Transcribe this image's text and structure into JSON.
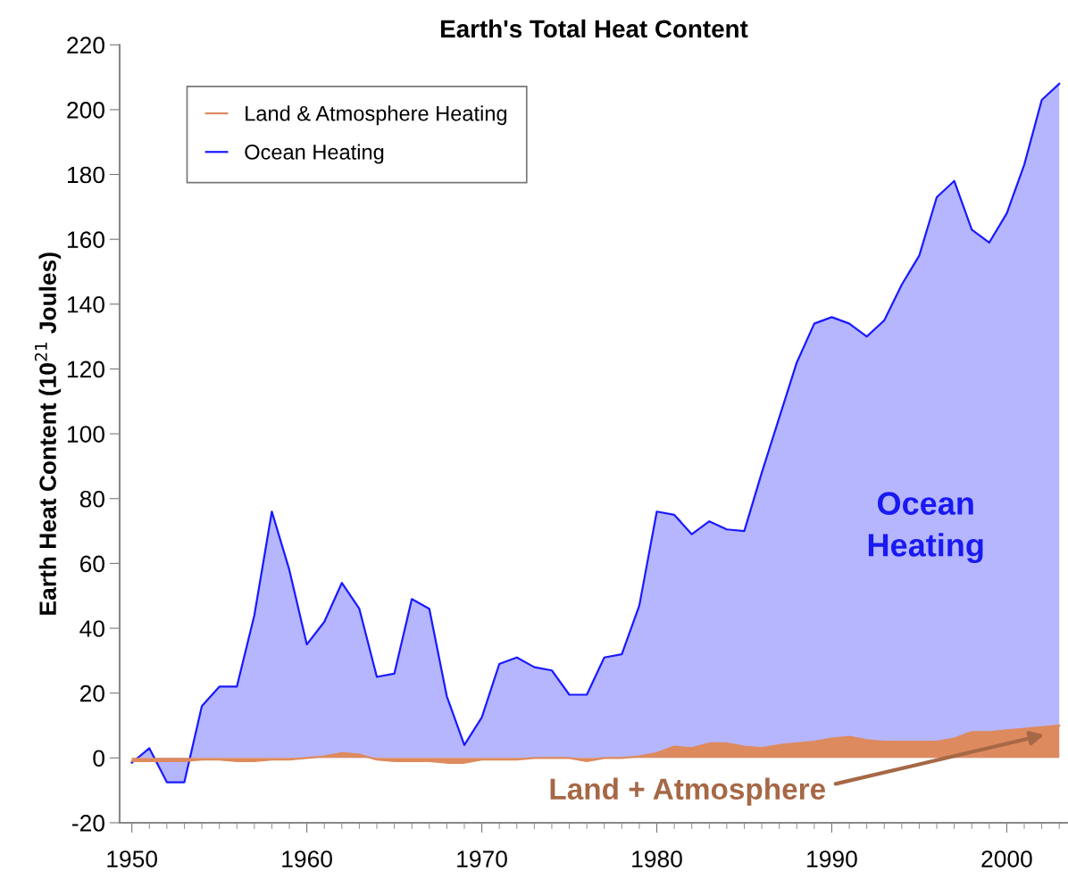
{
  "chart_data": {
    "type": "area",
    "title": "Earth's Total Heat Content",
    "ylabel": "Earth Heat Content (10$^{21}$ Joules)",
    "x": [
      1950,
      1951,
      1952,
      1953,
      1954,
      1955,
      1956,
      1957,
      1958,
      1959,
      1960,
      1961,
      1962,
      1963,
      1964,
      1965,
      1966,
      1967,
      1968,
      1969,
      1970,
      1971,
      1972,
      1973,
      1974,
      1975,
      1976,
      1977,
      1978,
      1979,
      1980,
      1981,
      1982,
      1983,
      1984,
      1985,
      1986,
      1987,
      1988,
      1989,
      1990,
      1991,
      1992,
      1993,
      1994,
      1995,
      1996,
      1997,
      1998,
      1999,
      2000,
      2001,
      2002,
      2003
    ],
    "series": [
      {
        "name": "Ocean Heating",
        "color": "#1a1aff",
        "values": [
          -1.5,
          3,
          -7.5,
          -7.5,
          16,
          22,
          22,
          44,
          76,
          58,
          35,
          42,
          54,
          46,
          25,
          26,
          49,
          46,
          19,
          4,
          12.5,
          29,
          31,
          28,
          27,
          19.5,
          19.5,
          31,
          32,
          47,
          76,
          75,
          69,
          73,
          70.5,
          70,
          88,
          105,
          122,
          134,
          136,
          134,
          130,
          135,
          146,
          155,
          173,
          178,
          163,
          159,
          168,
          183,
          203,
          208
        ]
      },
      {
        "name": "Land & Atmosphere Heating",
        "color": "#dd8a5e",
        "values": [
          -1,
          -1,
          -1,
          -1,
          -0.5,
          -0.5,
          -1,
          -1,
          -0.5,
          -0.5,
          0,
          0.5,
          1.5,
          1,
          -0.5,
          -1,
          -1,
          -1,
          -1.5,
          -1.5,
          -0.5,
          -0.5,
          -0.5,
          0,
          0,
          0,
          -1,
          0,
          0,
          0.5,
          1.5,
          3.5,
          3,
          4.5,
          4.5,
          3.5,
          3,
          4,
          4.5,
          5,
          6,
          6.5,
          5.5,
          5,
          5,
          5,
          5,
          6,
          8,
          8,
          8.5,
          9,
          9.5,
          10
        ]
      }
    ],
    "xlim": [
      1949.3,
      2003.5
    ],
    "xticks": [
      1950,
      1960,
      1970,
      1980,
      1990,
      2000
    ],
    "ylim": [
      -20,
      220
    ],
    "yticks": [
      -20,
      0,
      20,
      40,
      60,
      80,
      100,
      120,
      140,
      160,
      180,
      200,
      220
    ],
    "legend": "top left",
    "grid": false,
    "annotations": [
      "Ocean\nHeating",
      "Land + Atmosphere"
    ]
  }
}
